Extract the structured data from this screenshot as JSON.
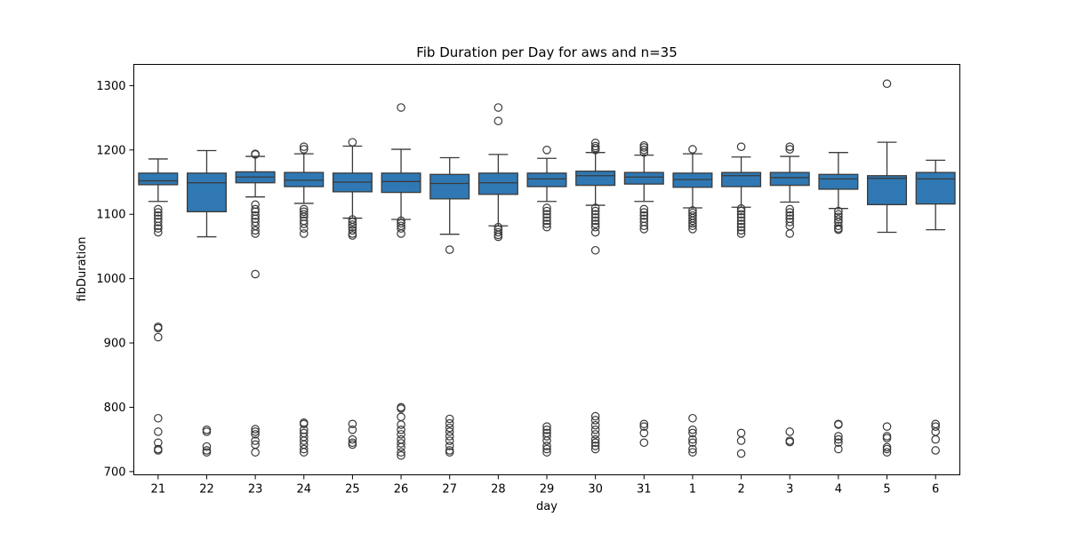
{
  "chart_data": {
    "type": "box",
    "title": "Fib Duration per Day for aws and n=35",
    "xlabel": "day",
    "ylabel": "fibDuration",
    "ylim": [
      695,
      1333
    ],
    "yticks": [
      700,
      800,
      900,
      1000,
      1100,
      1200,
      1300
    ],
    "grid": false,
    "box_color": "#2f78b3",
    "line_color": "#3a3a3a",
    "categories": [
      "21",
      "22",
      "23",
      "24",
      "25",
      "26",
      "27",
      "28",
      "29",
      "30",
      "31",
      "1",
      "2",
      "3",
      "4",
      "5",
      "6"
    ],
    "boxes": [
      {
        "day": "21",
        "whisker_low": 1120,
        "q1": 1146,
        "median": 1152,
        "q3": 1164,
        "whisker_high": 1186,
        "outliers": [
          1108,
          1103,
          1098,
          1093,
          1088,
          1082,
          1078,
          1072,
          925,
          923,
          909,
          783,
          762,
          745,
          735,
          733
        ]
      },
      {
        "day": "22",
        "whisker_low": 1065,
        "q1": 1104,
        "median": 1149,
        "q3": 1164,
        "whisker_high": 1199,
        "outliers": [
          765,
          762,
          739,
          733,
          730
        ]
      },
      {
        "day": "23",
        "whisker_low": 1127,
        "q1": 1149,
        "median": 1158,
        "q3": 1166,
        "whisker_high": 1190,
        "outliers": [
          1194,
          1193,
          1115,
          1108,
          1104,
          1098,
          1093,
          1088,
          1082,
          1075,
          1070,
          1007,
          766,
          762,
          758,
          748,
          742,
          730
        ]
      },
      {
        "day": "24",
        "whisker_low": 1117,
        "q1": 1143,
        "median": 1153,
        "q3": 1165,
        "whisker_high": 1194,
        "outliers": [
          1205,
          1201,
          1108,
          1104,
          1100,
          1096,
          1090,
          1085,
          1078,
          1070,
          776,
          774,
          765,
          760,
          754,
          748,
          742,
          735,
          730
        ]
      },
      {
        "day": "25",
        "whisker_low": 1094,
        "q1": 1135,
        "median": 1150,
        "q3": 1164,
        "whisker_high": 1206,
        "outliers": [
          1212,
          1092,
          1088,
          1084,
          1080,
          1075,
          1070,
          1067,
          774,
          765,
          750,
          745,
          742
        ]
      },
      {
        "day": "26",
        "whisker_low": 1092,
        "q1": 1134,
        "median": 1151,
        "q3": 1164,
        "whisker_high": 1201,
        "outliers": [
          1266,
          1090,
          1086,
          1082,
          1078,
          1070,
          800,
          798,
          785,
          773,
          765,
          758,
          750,
          744,
          738,
          730,
          725
        ]
      },
      {
        "day": "27",
        "whisker_low": 1069,
        "q1": 1124,
        "median": 1148,
        "q3": 1162,
        "whisker_high": 1188,
        "outliers": [
          1045,
          782,
          775,
          768,
          762,
          755,
          748,
          740,
          733,
          730
        ]
      },
      {
        "day": "28",
        "whisker_low": 1082,
        "q1": 1131,
        "median": 1149,
        "q3": 1164,
        "whisker_high": 1193,
        "outliers": [
          1266,
          1245,
          1080,
          1076,
          1072,
          1068,
          1065
        ]
      },
      {
        "day": "29",
        "whisker_low": 1120,
        "q1": 1143,
        "median": 1155,
        "q3": 1164,
        "whisker_high": 1187,
        "outliers": [
          1200,
          1110,
          1105,
          1100,
          1095,
          1090,
          1085,
          1080,
          770,
          765,
          760,
          755,
          748,
          740,
          735,
          730
        ]
      },
      {
        "day": "30",
        "whisker_low": 1114,
        "q1": 1145,
        "median": 1160,
        "q3": 1167,
        "whisker_high": 1196,
        "outliers": [
          1211,
          1206,
          1203,
          1200,
          1110,
          1105,
          1100,
          1095,
          1090,
          1085,
          1080,
          1072,
          1044,
          786,
          780,
          772,
          765,
          758,
          750,
          745,
          740,
          735
        ]
      },
      {
        "day": "31",
        "whisker_low": 1120,
        "q1": 1147,
        "median": 1158,
        "q3": 1165,
        "whisker_high": 1192,
        "outliers": [
          1207,
          1204,
          1200,
          1196,
          1108,
          1103,
          1098,
          1093,
          1088,
          1082,
          1077,
          774,
          770,
          760,
          745
        ]
      },
      {
        "day": "1",
        "whisker_low": 1110,
        "q1": 1142,
        "median": 1154,
        "q3": 1164,
        "whisker_high": 1194,
        "outliers": [
          1201,
          1106,
          1102,
          1098,
          1094,
          1090,
          1086,
          1082,
          1077,
          783,
          765,
          760,
          750,
          745,
          735,
          730
        ]
      },
      {
        "day": "2",
        "whisker_low": 1111,
        "q1": 1143,
        "median": 1160,
        "q3": 1165,
        "whisker_high": 1189,
        "outliers": [
          1205,
          1109,
          1105,
          1100,
          1095,
          1090,
          1085,
          1080,
          1075,
          1070,
          760,
          748,
          728
        ]
      },
      {
        "day": "3",
        "whisker_low": 1119,
        "q1": 1145,
        "median": 1157,
        "q3": 1165,
        "whisker_high": 1190,
        "outliers": [
          1205,
          1201,
          1108,
          1103,
          1098,
          1093,
          1088,
          1082,
          1070,
          762,
          748,
          746
        ]
      },
      {
        "day": "4",
        "whisker_low": 1109,
        "q1": 1139,
        "median": 1155,
        "q3": 1162,
        "whisker_high": 1196,
        "outliers": [
          1105,
          1100,
          1096,
          1092,
          1088,
          1082,
          1078,
          1076,
          774,
          773,
          755,
          750,
          745,
          735
        ]
      },
      {
        "day": "5",
        "whisker_low": 1072,
        "q1": 1115,
        "median": 1156,
        "q3": 1160,
        "whisker_high": 1212,
        "outliers": [
          1303,
          770,
          755,
          752,
          738,
          735,
          730
        ]
      },
      {
        "day": "6",
        "whisker_low": 1076,
        "q1": 1116,
        "median": 1155,
        "q3": 1165,
        "whisker_high": 1184,
        "outliers": [
          774,
          770,
          762,
          750,
          733
        ]
      }
    ]
  }
}
